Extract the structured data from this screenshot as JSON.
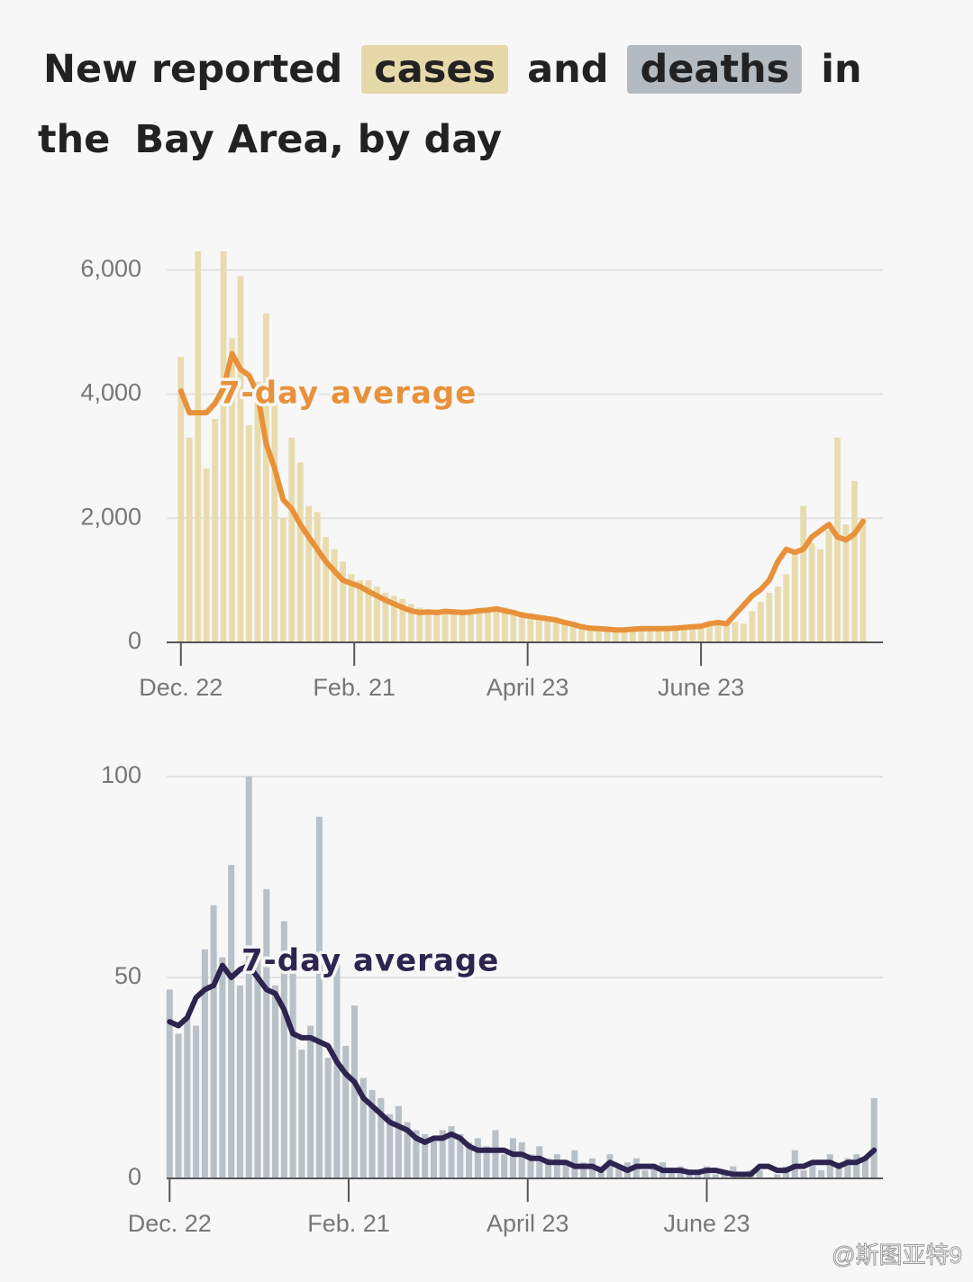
{
  "header": {
    "title_parts": [
      "New reported",
      "cases",
      "and",
      "deaths",
      "in the",
      "Bay Area, by day"
    ]
  },
  "chart_data": [
    {
      "type": "bar",
      "annotation": "7-day average",
      "x": [
        0,
        3,
        6,
        9,
        12,
        15,
        18,
        21,
        24,
        27,
        30,
        33,
        36,
        39,
        42,
        45,
        48,
        51,
        54,
        57,
        60,
        63,
        66,
        69,
        72,
        75,
        78,
        81,
        84,
        87,
        90,
        93,
        96,
        99,
        102,
        105,
        108,
        111,
        114,
        117,
        120,
        123,
        126,
        129,
        132,
        135,
        138,
        141,
        144,
        147,
        150,
        153,
        156,
        159,
        162,
        165,
        168,
        171,
        174,
        177,
        180,
        183,
        186,
        189,
        192,
        195,
        198,
        201,
        204,
        207,
        210,
        213,
        216,
        219,
        222,
        225,
        228,
        231,
        234,
        237,
        240
      ],
      "xlim": [
        -5,
        247
      ],
      "xticks": [
        {
          "value": 0,
          "label": "Dec. 22"
        },
        {
          "value": 61,
          "label": "Feb. 21"
        },
        {
          "value": 122,
          "label": "April 23"
        },
        {
          "value": 183,
          "label": "June 23"
        }
      ],
      "ylim": [
        0,
        6300
      ],
      "yticks": [
        0,
        {
          "value": 2000,
          "label": "2,000"
        },
        {
          "value": 4000,
          "label": "4,000"
        },
        {
          "value": 6000,
          "label": "6,000"
        }
      ],
      "grid": true,
      "series": [
        {
          "type": "bar",
          "color": "#e8dcae",
          "values": [
            4600,
            3300,
            6300,
            2800,
            3600,
            6300,
            4900,
            5900,
            3500,
            4200,
            5300,
            4100,
            2000,
            3300,
            2900,
            2200,
            2100,
            1700,
            1500,
            1300,
            1100,
            1000,
            1000,
            900,
            800,
            750,
            700,
            620,
            560,
            520,
            480,
            500,
            470,
            520,
            500,
            480,
            520,
            510,
            560,
            520,
            490,
            470,
            420,
            400,
            390,
            360,
            330,
            300,
            260,
            240,
            220,
            210,
            200,
            190,
            210,
            230,
            220,
            210,
            230,
            220,
            240,
            250,
            260,
            280,
            300,
            330,
            300,
            500,
            650,
            800,
            900,
            1100,
            1500,
            2200,
            1600,
            1500,
            1800,
            3300,
            1900,
            2600,
            2000
          ]
        },
        {
          "type": "line",
          "color": "#e8913a",
          "values": [
            4050,
            3700,
            3700,
            3700,
            3850,
            4100,
            4650,
            4400,
            4300,
            4000,
            3200,
            2800,
            2300,
            2150,
            1900,
            1700,
            1500,
            1300,
            1150,
            1000,
            950,
            900,
            820,
            750,
            680,
            620,
            560,
            510,
            480,
            490,
            480,
            500,
            490,
            480,
            490,
            510,
            520,
            540,
            510,
            480,
            440,
            420,
            400,
            380,
            360,
            320,
            290,
            250,
            230,
            220,
            210,
            200,
            200,
            210,
            220,
            220,
            220,
            220,
            230,
            240,
            250,
            260,
            300,
            320,
            300,
            450,
            600,
            750,
            850,
            1000,
            1300,
            1500,
            1450,
            1500,
            1700,
            1800,
            1900,
            1700,
            1650,
            1750,
            1950
          ]
        }
      ]
    },
    {
      "type": "bar",
      "annotation": "7-day average",
      "x": [
        0,
        3,
        6,
        9,
        12,
        15,
        18,
        21,
        24,
        27,
        30,
        33,
        36,
        39,
        42,
        45,
        48,
        51,
        54,
        57,
        60,
        63,
        66,
        69,
        72,
        75,
        78,
        81,
        84,
        87,
        90,
        93,
        96,
        99,
        102,
        105,
        108,
        111,
        114,
        117,
        120,
        123,
        126,
        129,
        132,
        135,
        138,
        141,
        144,
        147,
        150,
        153,
        156,
        159,
        162,
        165,
        168,
        171,
        174,
        177,
        180,
        183,
        186,
        189,
        192,
        195,
        198,
        201,
        204,
        207,
        210,
        213,
        216,
        219,
        222,
        225,
        228,
        231,
        234,
        237,
        240
      ],
      "xlim": [
        -1,
        243
      ],
      "xticks": [
        {
          "value": 0,
          "label": "Dec. 22"
        },
        {
          "value": 61,
          "label": "Feb. 21"
        },
        {
          "value": 122,
          "label": "April 23"
        },
        {
          "value": 183,
          "label": "June 23"
        }
      ],
      "ylim": [
        0,
        100
      ],
      "yticks": [
        0,
        50,
        100
      ],
      "grid": true,
      "series": [
        {
          "type": "bar",
          "color": "#b8c0c8",
          "values": [
            47,
            36,
            40,
            38,
            57,
            68,
            55,
            78,
            48,
            100,
            55,
            72,
            48,
            64,
            52,
            32,
            38,
            90,
            30,
            56,
            33,
            43,
            25,
            22,
            20,
            16,
            18,
            14,
            12,
            11,
            10,
            12,
            13,
            11,
            9,
            10,
            8,
            12,
            6,
            10,
            9,
            6,
            8,
            5,
            6,
            4,
            7,
            4,
            5,
            3,
            6,
            3,
            4,
            5,
            2,
            3,
            4,
            2,
            3,
            1,
            2,
            3,
            1,
            2,
            3,
            1,
            2,
            2,
            0,
            1,
            3,
            7,
            2,
            4,
            2,
            6,
            4,
            5,
            6,
            5,
            20
          ]
        },
        {
          "type": "line",
          "color": "#2e2450",
          "values": [
            39,
            38,
            40,
            45,
            47,
            48,
            53,
            50,
            52,
            53,
            50,
            47,
            46,
            42,
            36,
            35,
            35,
            34,
            33,
            29,
            26,
            24,
            20,
            18,
            16,
            14,
            13,
            12,
            10,
            9,
            10,
            10,
            11,
            10,
            8,
            7,
            7,
            7,
            7,
            6,
            6,
            5,
            5,
            4,
            4,
            4,
            3,
            3,
            3,
            2,
            4,
            3,
            2,
            3,
            3,
            3,
            2,
            2,
            2,
            1.5,
            1.5,
            2,
            2,
            1.5,
            1,
            1,
            1,
            3,
            3,
            2,
            2,
            3,
            3,
            4,
            4,
            4,
            3,
            4,
            4,
            5,
            7
          ]
        }
      ]
    }
  ],
  "watermark": "@斯图亚特9"
}
